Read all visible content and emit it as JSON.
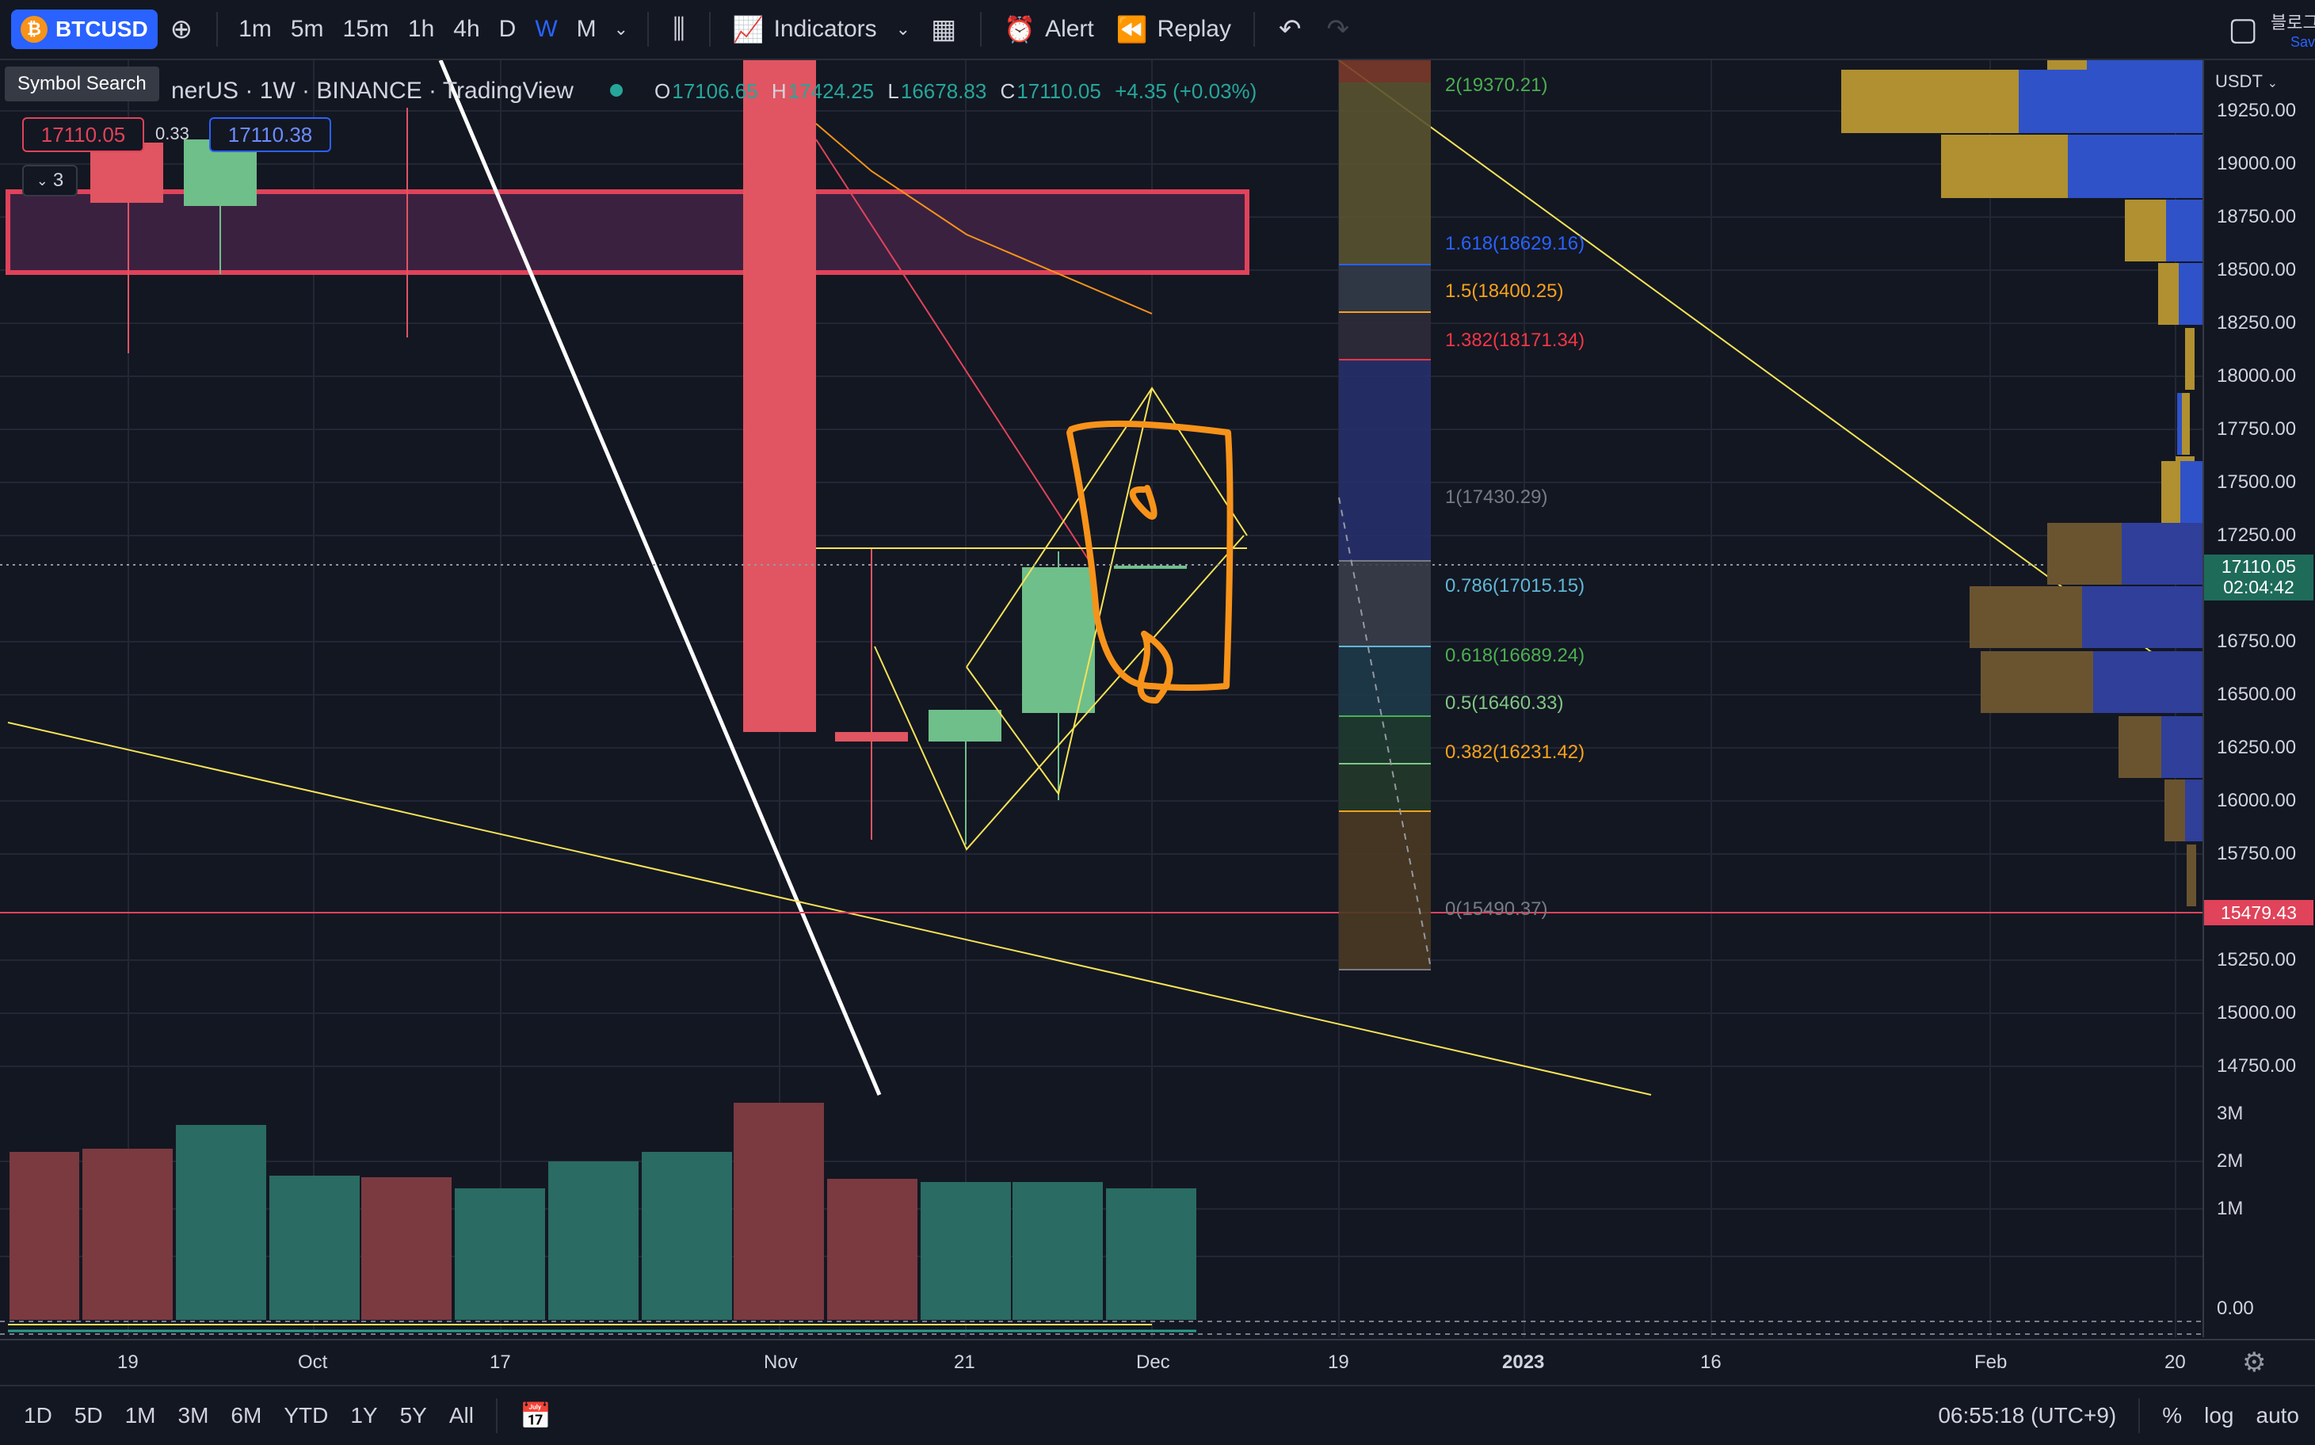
{
  "toolbar": {
    "symbol": "BTCUSD",
    "timeframes": [
      "1m",
      "5m",
      "15m",
      "1h",
      "4h",
      "D",
      "W",
      "M"
    ],
    "active_timeframe": "W",
    "indicators_label": "Indicators",
    "alert_label": "Alert",
    "replay_label": "Replay",
    "save_label": "Sav",
    "user_label": "블로그"
  },
  "legend": {
    "tooltip": "Symbol Search",
    "title": "nerUS · 1W · BINANCE · TradingView",
    "open_key": "O",
    "open": "17106.65",
    "high_key": "H",
    "high": "17424.25",
    "low_key": "L",
    "low": "16678.83",
    "close_key": "C",
    "close": "17110.05",
    "change": "+4.35 (+0.03%)",
    "bid": "17110.05",
    "spread": "0.33",
    "ask": "17110.38",
    "collapse_count": "3"
  },
  "fib_levels": [
    {
      "label": "2(19370.21)",
      "color": "#4caf50"
    },
    {
      "label": "1.618(18629.16)",
      "color": "#2962ff"
    },
    {
      "label": "1.5(18400.25)",
      "color": "#f7a21b"
    },
    {
      "label": "1.382(18171.34)",
      "color": "#f23645"
    },
    {
      "label": "1(17430.29)",
      "color": "#787b86"
    },
    {
      "label": "0.786(17015.15)",
      "color": "#5fb8d6"
    },
    {
      "label": "0.618(16689.24)",
      "color": "#4caf50"
    },
    {
      "label": "0.5(16460.33)",
      "color": "#81c784"
    },
    {
      "label": "0.382(16231.42)",
      "color": "#f7a21b"
    },
    {
      "label": "0(15490.37)",
      "color": "#787b86"
    }
  ],
  "price_axis": {
    "currency": "USDT",
    "labels": [
      "19250.00",
      "19000.00",
      "18750.00",
      "18500.00",
      "18250.00",
      "18000.00",
      "17750.00",
      "17500.00",
      "17250.00",
      "16750.00",
      "16500.00",
      "16250.00",
      "16000.00",
      "15750.00",
      "15250.00",
      "15000.00",
      "14750.00"
    ],
    "current_price": "17110.05",
    "countdown": "02:04:42",
    "marked_price": "15479.43",
    "volume_labels": [
      "3M",
      "2M",
      "1M"
    ],
    "osc_label": "0.00"
  },
  "time_axis": {
    "labels": [
      "19",
      "Oct",
      "17",
      "Nov",
      "21",
      "Dec",
      "19",
      "2023",
      "16",
      "Feb",
      "20"
    ]
  },
  "bottom": {
    "ranges": [
      "1D",
      "5D",
      "1M",
      "3M",
      "6M",
      "YTD",
      "1Y",
      "5Y",
      "All"
    ],
    "clock": "06:55:18 (UTC+9)",
    "percent": "%",
    "log": "log",
    "auto": "auto"
  },
  "colors": {
    "bg": "#131722",
    "up": "#6fbf8a",
    "down": "#e05561",
    "accent": "#2962ff",
    "drawing_orange": "#f7931a",
    "trendline_yellow": "#f5e356"
  }
}
